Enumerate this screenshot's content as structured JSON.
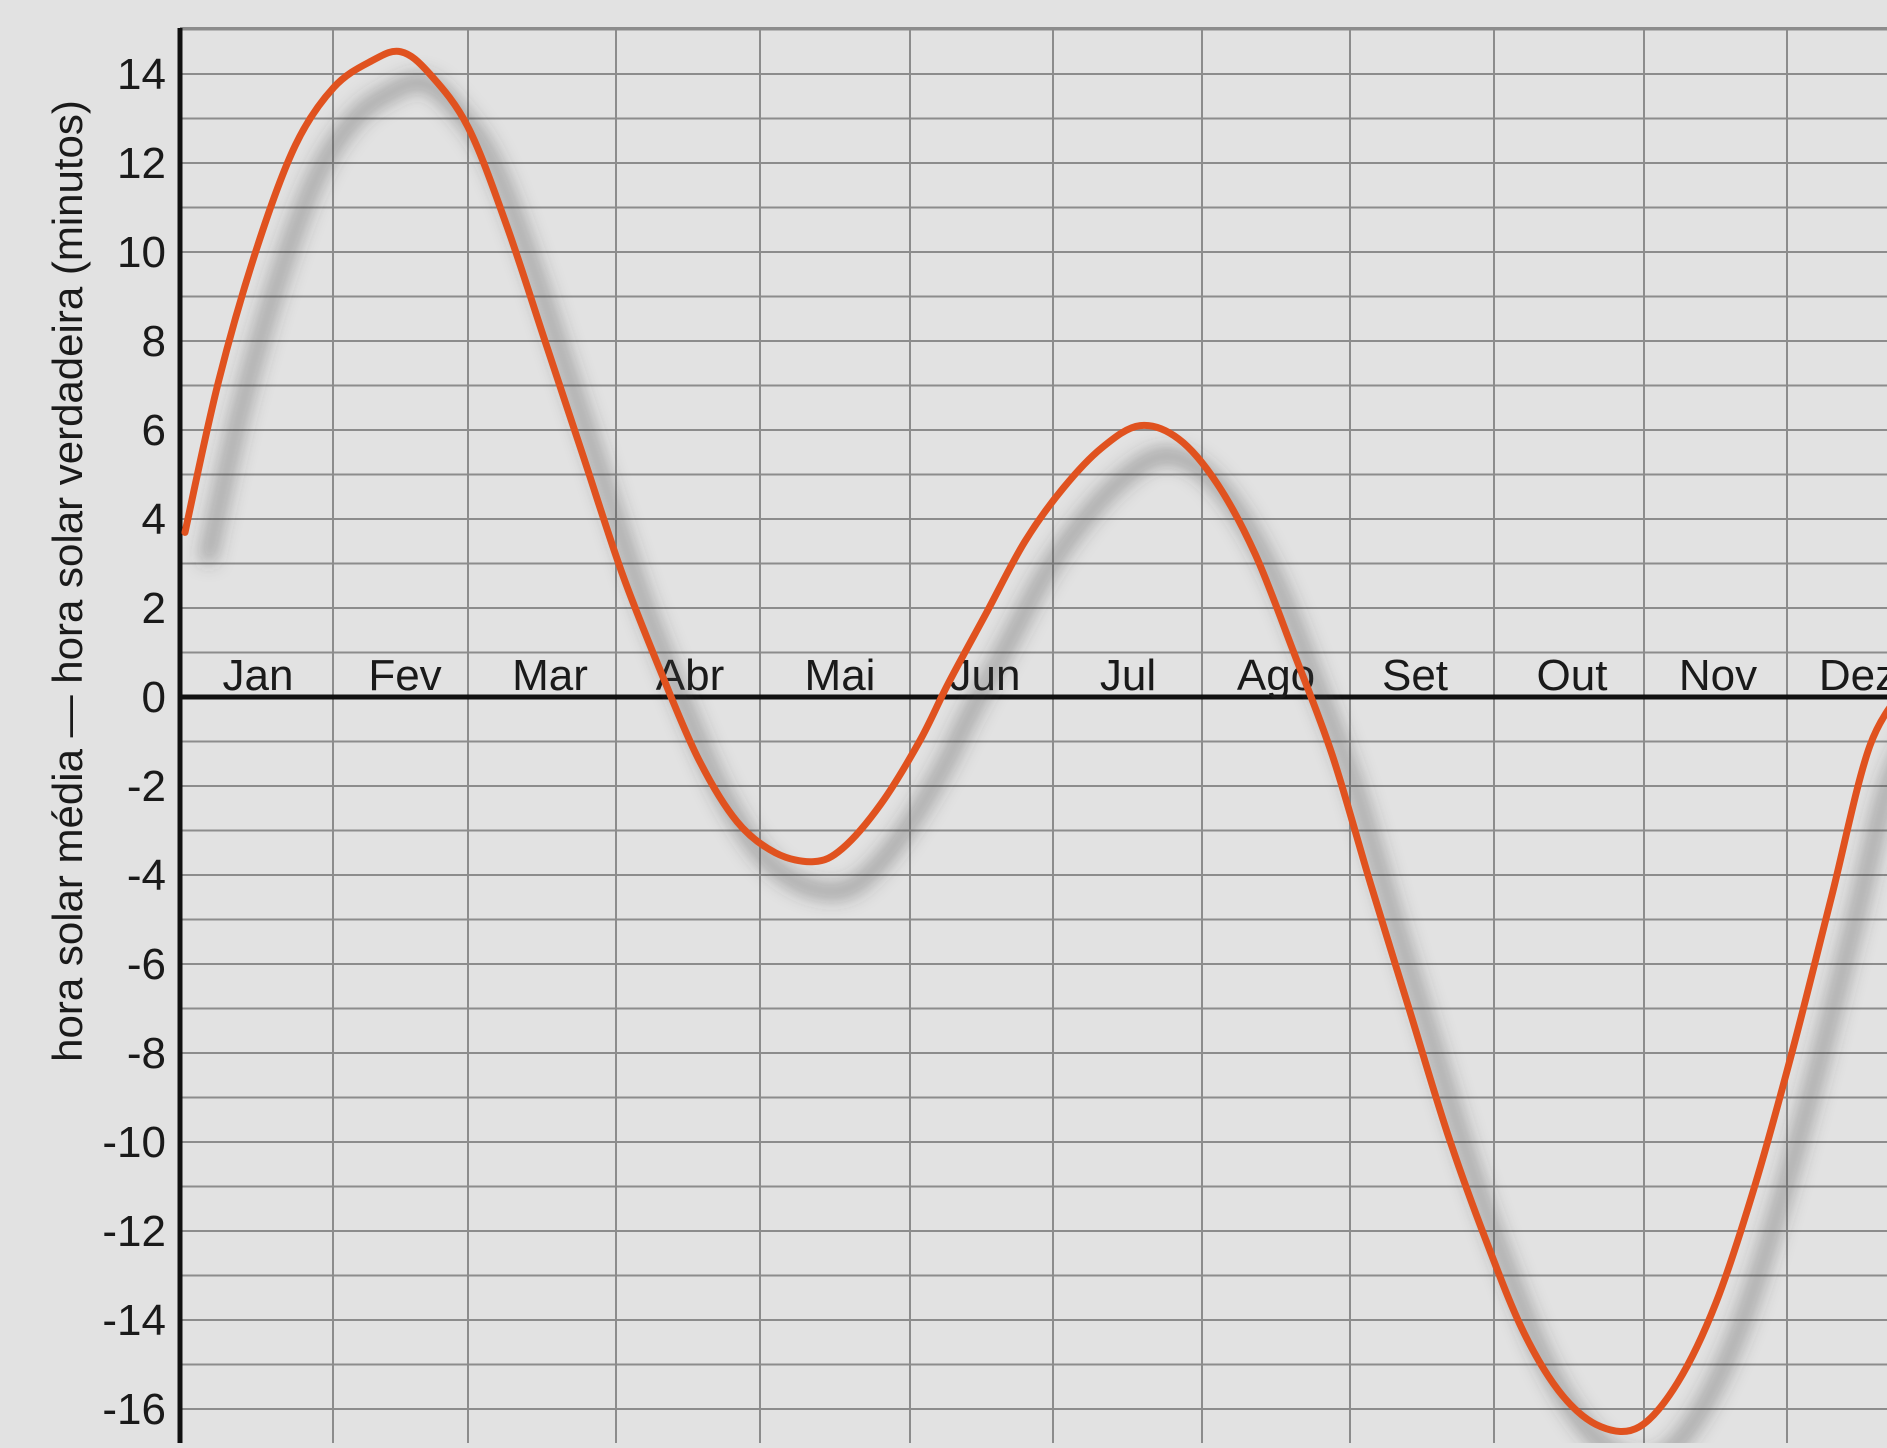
{
  "chart_data": {
    "type": "line",
    "title": "",
    "xlabel": "",
    "ylabel": "hora solar média — hora solar verdadeira (minutos)",
    "x_tick_labels": [
      "Jan",
      "Fev",
      "Mar",
      "Abr",
      "Mai",
      "Jun",
      "Jul",
      "Ago",
      "Set",
      "Out",
      "Nov",
      "Dez"
    ],
    "xlim": [
      1,
      360
    ],
    "x_unit": "day of year",
    "ylim": [
      -16.8,
      15
    ],
    "y_ticks": [
      14,
      12,
      10,
      8,
      6,
      4,
      2,
      0,
      -2,
      -4,
      -6,
      -8,
      -10,
      -12,
      -14,
      -16
    ],
    "y_tick_labels": [
      "14",
      "12",
      "10",
      "8",
      "6",
      "4",
      "2",
      "0",
      "-2",
      "-4",
      "-6",
      "-8",
      "-10",
      "-12",
      "-14",
      "-16"
    ],
    "grid": true,
    "series": [
      {
        "name": "",
        "color": "#e0521f",
        "x": [
          1,
          8,
          16,
          24,
          32,
          40,
          46,
          52,
          60,
          68,
          76,
          84,
          92,
          100,
          108,
          116,
          124,
          132,
          138,
          146,
          154,
          160,
          168,
          176,
          184,
          192,
          200,
          208,
          216,
          224,
          232,
          240,
          248,
          256,
          264,
          272,
          280,
          288,
          296,
          304,
          312,
          320,
          328,
          336,
          344,
          352,
          360
        ],
        "values": [
          3.7,
          7.1,
          10.1,
          12.4,
          13.7,
          14.3,
          14.5,
          14.0,
          12.8,
          10.6,
          8.0,
          5.4,
          2.8,
          0.6,
          -1.4,
          -2.8,
          -3.5,
          -3.7,
          -3.4,
          -2.4,
          -1.0,
          0.3,
          1.9,
          3.5,
          4.7,
          5.6,
          6.1,
          5.8,
          4.8,
          3.2,
          1.0,
          -1.3,
          -4.2,
          -7.0,
          -9.8,
          -12.2,
          -14.3,
          -15.7,
          -16.4,
          -16.4,
          -15.4,
          -13.6,
          -11.0,
          -7.9,
          -4.5,
          -1.1,
          0.3
        ]
      }
    ]
  }
}
